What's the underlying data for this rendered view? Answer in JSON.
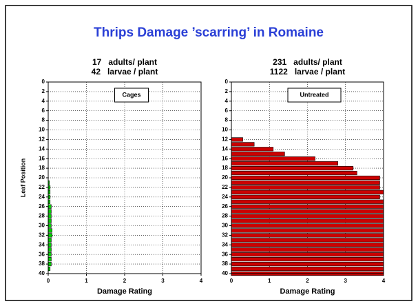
{
  "title": "Thrips Damage ’scarring’ in Romaine",
  "chart_data": [
    {
      "type": "hbar",
      "subtitle": [
        "17   adults/ plant",
        "42   larvae / plant"
      ],
      "legend": "Cages",
      "ylabel": "Leaf Position",
      "xlabel": "Damage Rating",
      "color": "#00cc00",
      "y": [
        21,
        22,
        23,
        24,
        25,
        26,
        27,
        28,
        29,
        30,
        31,
        32,
        33,
        34,
        35,
        36,
        37,
        38,
        39
      ],
      "values": [
        0.03,
        0.05,
        0.05,
        0.05,
        0.05,
        0.08,
        0.08,
        0.08,
        0.08,
        0.08,
        0.1,
        0.1,
        0.08,
        0.08,
        0.08,
        0.08,
        0.08,
        0.08,
        0.05
      ],
      "xlim": [
        0,
        4
      ],
      "xticks": [
        0,
        1,
        2,
        3,
        4
      ],
      "ylim": [
        0,
        40
      ],
      "yticks": [
        0,
        2,
        4,
        6,
        8,
        10,
        12,
        14,
        16,
        18,
        20,
        22,
        24,
        26,
        28,
        30,
        32,
        34,
        36,
        38,
        40
      ],
      "grid": true
    },
    {
      "type": "hbar",
      "subtitle": [
        "231   adults/ plant",
        "1122   larvae / plant"
      ],
      "legend": "Untreated",
      "xlabel": "Damage Rating",
      "color": "#cc0000",
      "y": [
        12,
        13,
        14,
        15,
        16,
        17,
        18,
        19,
        20,
        21,
        22,
        23,
        24,
        25,
        26,
        27,
        28,
        29,
        30,
        31,
        32,
        33,
        34,
        35,
        36,
        37,
        38,
        39,
        40
      ],
      "values": [
        0.3,
        0.6,
        1.1,
        1.4,
        2.2,
        2.8,
        3.2,
        3.3,
        3.9,
        3.9,
        3.9,
        4,
        3.9,
        4,
        4,
        4,
        4,
        4,
        4,
        4,
        4,
        4,
        4,
        4,
        4,
        4,
        4,
        4,
        4
      ],
      "xlim": [
        0,
        4
      ],
      "xticks": [
        0,
        1,
        2,
        3,
        4
      ],
      "ylim": [
        0,
        40
      ],
      "yticks": [
        0,
        2,
        4,
        6,
        8,
        10,
        12,
        14,
        16,
        18,
        20,
        22,
        24,
        26,
        28,
        30,
        32,
        34,
        36,
        38,
        40
      ],
      "grid": true
    }
  ]
}
